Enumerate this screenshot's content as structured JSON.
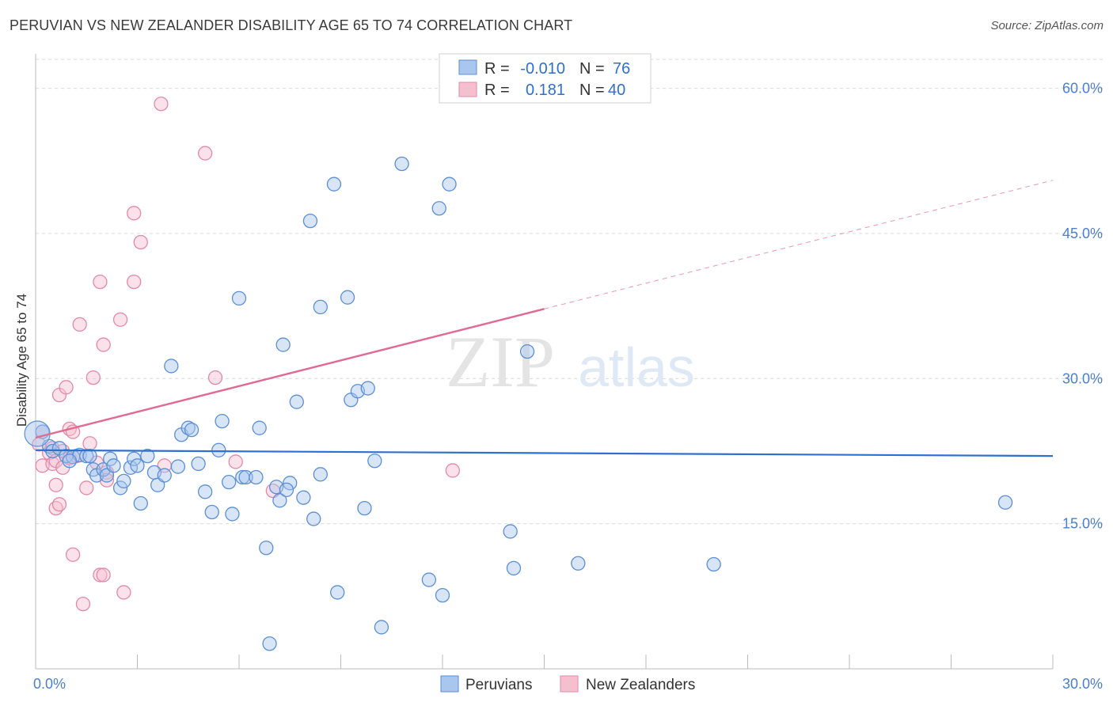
{
  "title": "PERUVIAN VS NEW ZEALANDER DISABILITY AGE 65 TO 74 CORRELATION CHART",
  "source": "Source: ZipAtlas.com",
  "watermark": {
    "zip": "ZIP",
    "atlas": "atlas"
  },
  "colors": {
    "peruvian_fill": "#a9c6ee",
    "peruvian_stroke": "#5b8fd6",
    "peruvian_line": "#2f6fd0",
    "nz_fill": "#f6bfd0",
    "nz_stroke": "#e389a8",
    "nz_line": "#e06b91",
    "grid": "#d9d9d9",
    "axis_text": "#4a7fd0"
  },
  "legend": {
    "r_label": "R =",
    "n_label": "N =",
    "rows": [
      {
        "series": "Peruvians",
        "r": "-0.010",
        "n": "76"
      },
      {
        "series": "New Zealanders",
        "r": "0.181",
        "n": "40"
      }
    ]
  },
  "chart_data": {
    "type": "scatter",
    "title": "PERUVIAN VS NEW ZEALANDER DISABILITY AGE 65 TO 74 CORRELATION CHART",
    "xlabel": "",
    "ylabel": "Disability Age 65 to 74",
    "xlim": [
      0,
      30
    ],
    "ylim": [
      0,
      63
    ],
    "x_tick_labels": [
      {
        "value": 0,
        "label": "0.0%"
      },
      {
        "value": 30,
        "label": "30.0%"
      }
    ],
    "y_tick_labels": [
      {
        "value": 15,
        "label": "15.0%"
      },
      {
        "value": 30,
        "label": "30.0%"
      },
      {
        "value": 45,
        "label": "45.0%"
      },
      {
        "value": 60,
        "label": "60.0%"
      }
    ],
    "series": [
      {
        "name": "Peruvians",
        "trend": {
          "x0": 0,
          "y0": 22.6,
          "x1": 30,
          "y1": 22.0,
          "dashed_from": null
        },
        "points": [
          [
            0.2,
            24.5
          ],
          [
            0.4,
            23.0
          ],
          [
            0.5,
            22.5
          ],
          [
            0.7,
            22.8
          ],
          [
            0.9,
            22.0
          ],
          [
            1.1,
            21.9
          ],
          [
            1.3,
            22.1
          ],
          [
            1.5,
            22.0
          ],
          [
            1.7,
            20.6
          ],
          [
            1.8,
            20.0
          ],
          [
            2.0,
            20.6
          ],
          [
            2.1,
            20.0
          ],
          [
            2.2,
            21.7
          ],
          [
            2.3,
            21.0
          ],
          [
            2.5,
            18.7
          ],
          [
            2.6,
            19.4
          ],
          [
            2.8,
            20.8
          ],
          [
            2.9,
            21.7
          ],
          [
            3.0,
            21.0
          ],
          [
            3.1,
            17.1
          ],
          [
            3.3,
            22.0
          ],
          [
            3.5,
            20.3
          ],
          [
            3.6,
            19.0
          ],
          [
            3.8,
            20.0
          ],
          [
            4.0,
            31.3
          ],
          [
            4.2,
            20.9
          ],
          [
            4.3,
            24.2
          ],
          [
            4.5,
            24.9
          ],
          [
            4.6,
            24.7
          ],
          [
            4.8,
            21.2
          ],
          [
            5.0,
            18.3
          ],
          [
            5.2,
            16.2
          ],
          [
            5.4,
            22.6
          ],
          [
            5.5,
            25.6
          ],
          [
            5.7,
            19.3
          ],
          [
            5.8,
            16.0
          ],
          [
            6.1,
            19.8
          ],
          [
            6.0,
            38.3
          ],
          [
            6.2,
            19.8
          ],
          [
            6.5,
            19.8
          ],
          [
            6.6,
            24.9
          ],
          [
            6.8,
            12.5
          ],
          [
            6.9,
            2.6
          ],
          [
            7.1,
            18.8
          ],
          [
            7.2,
            17.4
          ],
          [
            7.3,
            33.5
          ],
          [
            7.5,
            19.2
          ],
          [
            7.4,
            18.5
          ],
          [
            7.7,
            27.6
          ],
          [
            7.9,
            17.7
          ],
          [
            8.1,
            46.3
          ],
          [
            8.2,
            15.5
          ],
          [
            8.4,
            37.4
          ],
          [
            8.4,
            20.1
          ],
          [
            8.8,
            50.1
          ],
          [
            8.9,
            7.9
          ],
          [
            9.2,
            38.4
          ],
          [
            9.3,
            27.8
          ],
          [
            9.5,
            28.7
          ],
          [
            9.7,
            16.6
          ],
          [
            9.8,
            29.0
          ],
          [
            10.0,
            21.5
          ],
          [
            10.2,
            4.3
          ],
          [
            10.8,
            52.2
          ],
          [
            11.6,
            9.2
          ],
          [
            11.9,
            47.6
          ],
          [
            12.0,
            7.6
          ],
          [
            12.2,
            50.1
          ],
          [
            14.0,
            14.2
          ],
          [
            14.1,
            10.4
          ],
          [
            14.5,
            32.8
          ],
          [
            16.0,
            10.9
          ],
          [
            20.0,
            10.8
          ],
          [
            28.6,
            17.2
          ],
          [
            1.0,
            21.5
          ],
          [
            1.6,
            22.0
          ]
        ]
      },
      {
        "name": "New Zealanders",
        "trend": {
          "x0": 0,
          "y0": 23.9,
          "x1": 30,
          "y1": 50.5,
          "dashed_from": 15
        },
        "points": [
          [
            0.1,
            23.2
          ],
          [
            0.2,
            21.0
          ],
          [
            0.2,
            24.5
          ],
          [
            0.4,
            22.3
          ],
          [
            0.5,
            22.8
          ],
          [
            0.5,
            21.2
          ],
          [
            0.6,
            21.5
          ],
          [
            0.6,
            19.0
          ],
          [
            0.6,
            16.6
          ],
          [
            0.7,
            28.3
          ],
          [
            0.7,
            17.0
          ],
          [
            0.8,
            22.5
          ],
          [
            0.8,
            20.8
          ],
          [
            0.9,
            29.1
          ],
          [
            1.0,
            21.8
          ],
          [
            1.0,
            24.8
          ],
          [
            1.1,
            11.8
          ],
          [
            1.1,
            24.5
          ],
          [
            1.2,
            22.0
          ],
          [
            1.3,
            35.6
          ],
          [
            1.4,
            6.7
          ],
          [
            1.5,
            18.7
          ],
          [
            1.6,
            23.3
          ],
          [
            1.7,
            30.1
          ],
          [
            1.8,
            21.3
          ],
          [
            1.9,
            40.0
          ],
          [
            1.9,
            9.7
          ],
          [
            2.0,
            33.5
          ],
          [
            2.0,
            9.7
          ],
          [
            2.1,
            20.3
          ],
          [
            2.1,
            19.5
          ],
          [
            2.5,
            36.1
          ],
          [
            2.6,
            7.9
          ],
          [
            2.9,
            40.0
          ],
          [
            2.9,
            47.1
          ],
          [
            3.1,
            44.1
          ],
          [
            3.7,
            58.4
          ],
          [
            3.8,
            21.0
          ],
          [
            5.0,
            53.3
          ],
          [
            5.3,
            30.1
          ]
        ],
        "extra_points": [
          [
            5.9,
            21.4
          ],
          [
            7.0,
            18.4
          ],
          [
            12.3,
            20.5
          ]
        ]
      }
    ],
    "legend_position": "top-center",
    "bottom_legend": [
      "Peruvians",
      "New Zealanders"
    ]
  }
}
